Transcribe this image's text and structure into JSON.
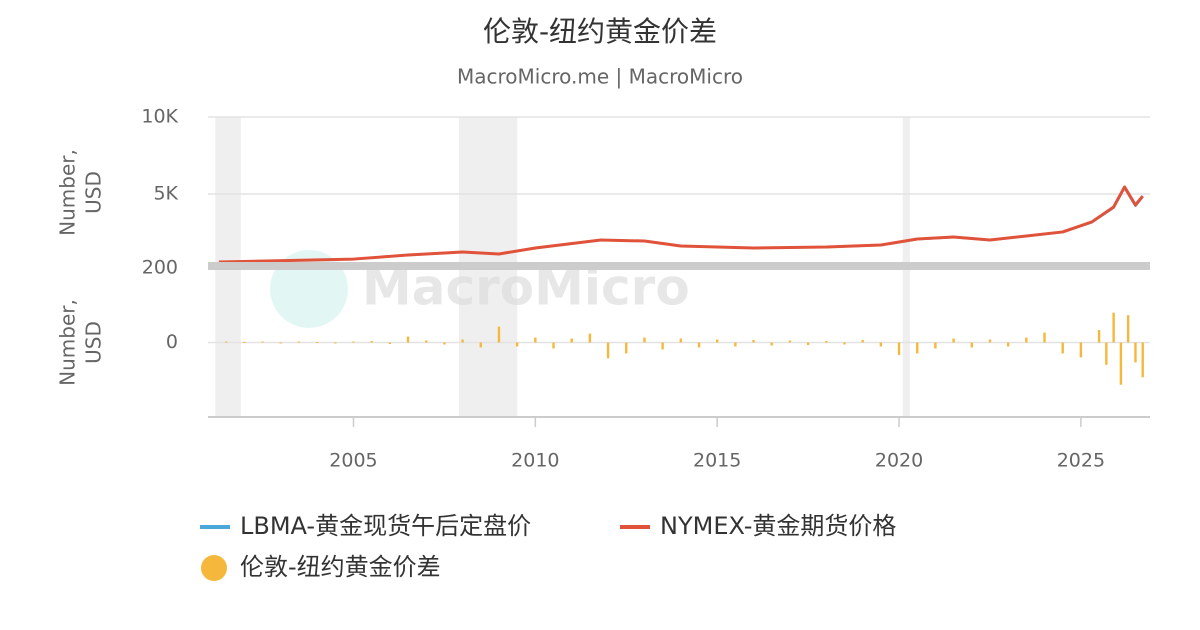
{
  "title": "伦敦-纽约黄金价差",
  "subtitle": "MacroMicro.me | MacroMicro",
  "watermark": "MacroMicro",
  "chart_data": [
    {
      "type": "line",
      "y_label_lines": [
        "Number,",
        "USD"
      ],
      "x": [
        2001.3,
        2005,
        2006.5,
        2008,
        2009,
        2010,
        2011.8,
        2013,
        2014,
        2016,
        2018,
        2019.5,
        2020.5,
        2021.5,
        2022.5,
        2023.5,
        2024.5,
        2025.3,
        2025.9,
        2026.2,
        2026.5,
        2026.7
      ],
      "xlim": [
        2001,
        2026.9
      ],
      "ylim": [
        200,
        10000
      ],
      "yticks": [
        {
          "value": 10000,
          "label": "10K"
        },
        {
          "value": 5000,
          "label": "5K"
        },
        200
      ],
      "series": [
        {
          "name": "LBMA-黄金现货午后定盘价",
          "color": "#4aa8d8",
          "values": [
            580,
            770,
            1030,
            1230,
            1100,
            1490,
            2000,
            1940,
            1620,
            1490,
            1550,
            1680,
            2060,
            2190,
            2000,
            2260,
            2520,
            3150,
            4100,
            5380,
            4220,
            4800
          ]
        },
        {
          "name": "NYMEX-黄金期货价格",
          "color": "#e0533a",
          "values": [
            590,
            780,
            1040,
            1240,
            1110,
            1500,
            2020,
            1950,
            1630,
            1500,
            1560,
            1690,
            2080,
            2210,
            2020,
            2280,
            2540,
            3190,
            4160,
            5460,
            4290,
            4870
          ]
        }
      ]
    },
    {
      "type": "bar",
      "y_label_lines": [
        "Number,",
        "USD"
      ],
      "x": [
        2001.5,
        2002,
        2002.5,
        2003,
        2003.5,
        2004,
        2004.5,
        2005,
        2005.5,
        2006,
        2006.5,
        2007,
        2007.5,
        2008,
        2008.5,
        2009,
        2009.5,
        2010,
        2010.5,
        2011,
        2011.5,
        2012,
        2012.5,
        2013,
        2013.5,
        2014,
        2014.5,
        2015,
        2015.5,
        2016,
        2016.5,
        2017,
        2017.5,
        2018,
        2018.5,
        2019,
        2019.5,
        2020,
        2020.5,
        2021,
        2021.5,
        2022,
        2022.5,
        2023,
        2023.5,
        2024,
        2024.5,
        2025,
        2025.5,
        2025.7,
        2025.9,
        2026.1,
        2026.3,
        2026.5,
        2026.7
      ],
      "xlim": [
        2001,
        2026.9
      ],
      "xticks": [
        2005,
        2010,
        2015,
        2020,
        2025
      ],
      "ylim": [
        -150,
        150
      ],
      "yticks": [
        0
      ],
      "shaded_periods": [
        [
          2001.2,
          2001.9
        ],
        [
          2007.9,
          2009.5
        ],
        [
          2020.1,
          2020.3
        ]
      ],
      "series": [
        {
          "name": "伦敦-纽约黄金价差",
          "color": "#f5b83d",
          "values": [
            2,
            1,
            2,
            -1,
            2,
            1,
            -2,
            2,
            3,
            -3,
            12,
            4,
            -4,
            6,
            -10,
            32,
            -8,
            10,
            -12,
            8,
            18,
            -32,
            -22,
            10,
            -14,
            8,
            -10,
            6,
            -8,
            5,
            -6,
            4,
            -5,
            3,
            -4,
            5,
            -8,
            -25,
            -22,
            -12,
            8,
            -10,
            6,
            -8,
            10,
            20,
            -22,
            -30,
            25,
            -45,
            60,
            -85,
            55,
            -40,
            -70
          ]
        }
      ]
    }
  ]
}
